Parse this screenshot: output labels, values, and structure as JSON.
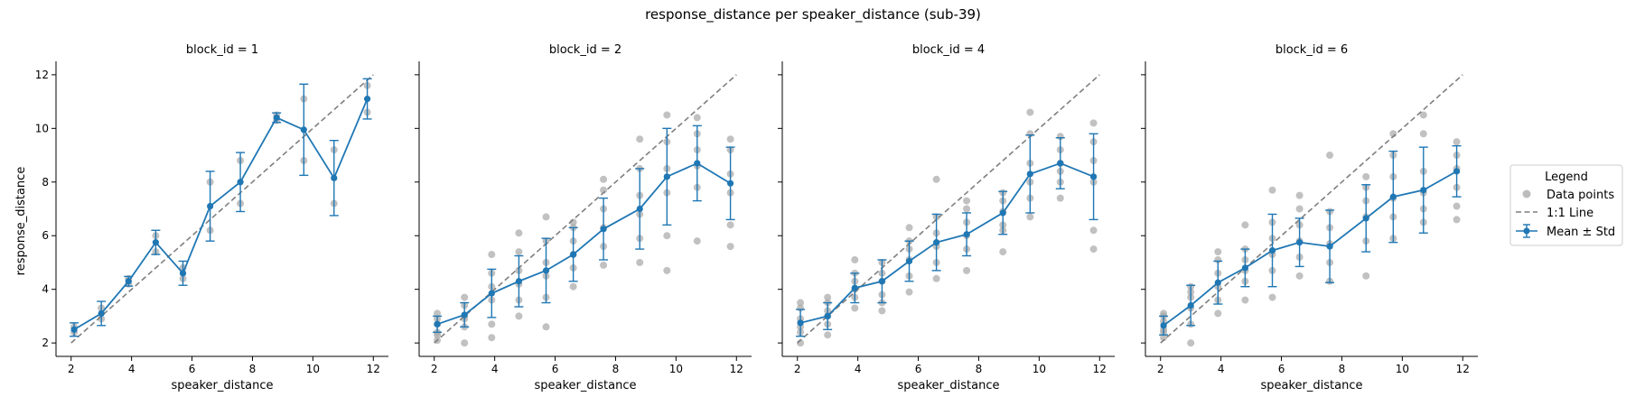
{
  "figure": {
    "title": "response_distance per speaker_distance (sub-39)"
  },
  "legend": {
    "title": "Legend",
    "entries": [
      "Data points",
      "1:1 Line",
      "Mean ± Std"
    ]
  },
  "colors": {
    "points": "#a6a6a6",
    "mean": "#1f77b4",
    "identity": "#7f7f7f"
  },
  "chart_data": {
    "type": "scatter",
    "facet_variable": "block_id",
    "xlabel": "speaker_distance",
    "ylabel": "response_distance",
    "xlim": [
      1.5,
      12.5
    ],
    "ylim": [
      1.5,
      12.5
    ],
    "xticks": [
      2,
      4,
      6,
      8,
      10,
      12
    ],
    "yticks": [
      2,
      4,
      6,
      8,
      10,
      12
    ],
    "x": [
      2.1,
      3.0,
      3.9,
      4.8,
      5.7,
      6.6,
      7.6,
      8.8,
      9.7,
      10.7,
      11.8
    ],
    "panels": [
      {
        "title": "block_id = 1",
        "mean": [
          2.5,
          3.1,
          4.3,
          5.75,
          4.6,
          7.1,
          8.0,
          10.4,
          9.95,
          8.15,
          11.1
        ],
        "std": [
          0.25,
          0.45,
          0.18,
          0.45,
          0.45,
          1.3,
          1.1,
          0.18,
          1.7,
          1.4,
          0.75
        ],
        "points": [
          [
            2.1,
            2.4
          ],
          [
            2.1,
            2.6
          ],
          [
            3.0,
            2.9
          ],
          [
            3.0,
            3.3
          ],
          [
            3.9,
            4.2
          ],
          [
            3.9,
            4.4
          ],
          [
            4.8,
            5.4
          ],
          [
            4.8,
            6.0
          ],
          [
            5.7,
            4.4
          ],
          [
            5.7,
            4.8
          ],
          [
            6.6,
            6.2
          ],
          [
            6.6,
            8.0
          ],
          [
            7.6,
            7.2
          ],
          [
            7.6,
            8.8
          ],
          [
            8.8,
            10.3
          ],
          [
            8.8,
            10.5
          ],
          [
            9.7,
            8.8
          ],
          [
            9.7,
            11.1
          ],
          [
            10.7,
            7.2
          ],
          [
            10.7,
            9.2
          ],
          [
            11.8,
            10.6
          ],
          [
            11.8,
            11.6
          ]
        ]
      },
      {
        "title": "block_id = 2",
        "mean": [
          2.7,
          3.05,
          3.85,
          4.3,
          4.7,
          5.3,
          6.25,
          7.0,
          8.2,
          8.7,
          7.95
        ],
        "std": [
          0.3,
          0.45,
          0.9,
          0.95,
          1.2,
          1.0,
          1.15,
          1.5,
          1.8,
          1.4,
          1.35
        ],
        "points": [
          [
            2.1,
            2.1
          ],
          [
            2.1,
            2.4
          ],
          [
            2.1,
            2.7
          ],
          [
            2.1,
            2.9
          ],
          [
            2.1,
            3.1
          ],
          [
            2.1,
            2.3
          ],
          [
            3.0,
            2.0
          ],
          [
            3.0,
            2.6
          ],
          [
            3.0,
            3.0
          ],
          [
            3.0,
            3.4
          ],
          [
            3.0,
            3.7
          ],
          [
            3.0,
            2.9
          ],
          [
            3.9,
            2.2
          ],
          [
            3.9,
            2.7
          ],
          [
            3.9,
            3.6
          ],
          [
            3.9,
            4.1
          ],
          [
            3.9,
            4.6
          ],
          [
            3.9,
            5.3
          ],
          [
            4.8,
            3.0
          ],
          [
            4.8,
            3.6
          ],
          [
            4.8,
            4.2
          ],
          [
            4.8,
            4.7
          ],
          [
            4.8,
            5.4
          ],
          [
            4.8,
            6.1
          ],
          [
            5.7,
            2.6
          ],
          [
            5.7,
            3.7
          ],
          [
            5.7,
            4.5
          ],
          [
            5.7,
            5.0
          ],
          [
            5.7,
            5.8
          ],
          [
            5.7,
            6.7
          ],
          [
            6.6,
            4.1
          ],
          [
            6.6,
            4.8
          ],
          [
            6.6,
            5.3
          ],
          [
            6.6,
            5.8
          ],
          [
            6.6,
            6.3
          ],
          [
            6.6,
            6.5
          ],
          [
            7.6,
            4.9
          ],
          [
            7.6,
            5.6
          ],
          [
            7.6,
            6.3
          ],
          [
            7.6,
            7.0
          ],
          [
            7.6,
            7.7
          ],
          [
            7.6,
            8.1
          ],
          [
            8.8,
            5.0
          ],
          [
            8.8,
            5.9
          ],
          [
            8.8,
            6.8
          ],
          [
            8.8,
            7.5
          ],
          [
            8.8,
            8.5
          ],
          [
            8.8,
            9.6
          ],
          [
            9.7,
            4.7
          ],
          [
            9.7,
            6.0
          ],
          [
            9.7,
            7.6
          ],
          [
            9.7,
            8.5
          ],
          [
            9.7,
            9.5
          ],
          [
            9.7,
            10.5
          ],
          [
            10.7,
            5.8
          ],
          [
            10.7,
            7.8
          ],
          [
            10.7,
            8.6
          ],
          [
            10.7,
            9.2
          ],
          [
            10.7,
            9.8
          ],
          [
            10.7,
            10.4
          ],
          [
            11.8,
            5.6
          ],
          [
            11.8,
            6.4
          ],
          [
            11.8,
            7.6
          ],
          [
            11.8,
            8.3
          ],
          [
            11.8,
            9.2
          ],
          [
            11.8,
            9.6
          ]
        ]
      },
      {
        "title": "block_id = 4",
        "mean": [
          2.75,
          3.0,
          4.05,
          4.3,
          5.05,
          5.75,
          6.05,
          6.85,
          8.3,
          8.7,
          8.2
        ],
        "std": [
          0.5,
          0.5,
          0.55,
          0.8,
          0.75,
          1.05,
          0.8,
          0.8,
          1.45,
          0.95,
          1.6
        ],
        "points": [
          [
            2.1,
            2.0
          ],
          [
            2.1,
            2.4
          ],
          [
            2.1,
            2.9
          ],
          [
            2.1,
            3.3
          ],
          [
            2.1,
            3.5
          ],
          [
            2.1,
            2.6
          ],
          [
            3.0,
            2.3
          ],
          [
            3.0,
            2.7
          ],
          [
            3.0,
            3.0
          ],
          [
            3.0,
            3.5
          ],
          [
            3.0,
            3.7
          ],
          [
            3.0,
            3.2
          ],
          [
            3.9,
            3.3
          ],
          [
            3.9,
            3.7
          ],
          [
            3.9,
            4.0
          ],
          [
            3.9,
            4.3
          ],
          [
            3.9,
            4.6
          ],
          [
            3.9,
            5.1
          ],
          [
            4.8,
            3.2
          ],
          [
            4.8,
            3.8
          ],
          [
            4.8,
            4.3
          ],
          [
            4.8,
            4.6
          ],
          [
            4.8,
            5.0
          ],
          [
            4.8,
            3.5
          ],
          [
            5.7,
            3.9
          ],
          [
            5.7,
            4.5
          ],
          [
            5.7,
            5.1
          ],
          [
            5.7,
            5.5
          ],
          [
            5.7,
            5.8
          ],
          [
            5.7,
            6.3
          ],
          [
            6.6,
            4.4
          ],
          [
            6.6,
            5.0
          ],
          [
            6.6,
            5.6
          ],
          [
            6.6,
            6.1
          ],
          [
            6.6,
            6.7
          ],
          [
            6.6,
            8.1
          ],
          [
            7.6,
            4.7
          ],
          [
            7.6,
            5.5
          ],
          [
            7.6,
            6.0
          ],
          [
            7.6,
            6.5
          ],
          [
            7.6,
            7.0
          ],
          [
            7.6,
            7.3
          ],
          [
            8.8,
            5.4
          ],
          [
            8.8,
            6.2
          ],
          [
            8.8,
            6.9
          ],
          [
            8.8,
            7.3
          ],
          [
            8.8,
            7.6
          ],
          [
            8.8,
            6.4
          ],
          [
            9.7,
            6.7
          ],
          [
            9.7,
            7.4
          ],
          [
            9.7,
            8.0
          ],
          [
            9.7,
            8.7
          ],
          [
            9.7,
            9.8
          ],
          [
            9.7,
            10.6
          ],
          [
            10.7,
            7.4
          ],
          [
            10.7,
            8.0
          ],
          [
            10.7,
            8.7
          ],
          [
            10.7,
            9.2
          ],
          [
            10.7,
            9.7
          ],
          [
            10.7,
            8.4
          ],
          [
            11.8,
            5.5
          ],
          [
            11.8,
            6.2
          ],
          [
            11.8,
            8.0
          ],
          [
            11.8,
            8.8
          ],
          [
            11.8,
            9.5
          ],
          [
            11.8,
            10.2
          ]
        ]
      },
      {
        "title": "block_id = 6",
        "mean": [
          2.65,
          3.4,
          4.25,
          4.8,
          5.45,
          5.75,
          5.6,
          6.65,
          7.45,
          7.7,
          8.4
        ],
        "std": [
          0.35,
          0.75,
          0.8,
          0.7,
          1.35,
          0.9,
          1.35,
          1.25,
          1.7,
          1.6,
          0.95
        ],
        "points": [
          [
            2.1,
            2.2
          ],
          [
            2.1,
            2.5
          ],
          [
            2.1,
            2.8
          ],
          [
            2.1,
            3.1
          ],
          [
            2.1,
            2.4
          ],
          [
            2.1,
            3.0
          ],
          [
            3.0,
            2.0
          ],
          [
            3.0,
            2.7
          ],
          [
            3.0,
            3.3
          ],
          [
            3.0,
            3.7
          ],
          [
            3.0,
            4.1
          ],
          [
            3.0,
            3.9
          ],
          [
            3.9,
            3.1
          ],
          [
            3.9,
            3.6
          ],
          [
            3.9,
            4.1
          ],
          [
            3.9,
            4.6
          ],
          [
            3.9,
            5.1
          ],
          [
            3.9,
            5.4
          ],
          [
            4.8,
            3.6
          ],
          [
            4.8,
            4.3
          ],
          [
            4.8,
            4.7
          ],
          [
            4.8,
            5.1
          ],
          [
            4.8,
            5.5
          ],
          [
            4.8,
            6.4
          ],
          [
            5.7,
            3.7
          ],
          [
            5.7,
            4.7
          ],
          [
            5.7,
            5.3
          ],
          [
            5.7,
            5.9
          ],
          [
            5.7,
            6.5
          ],
          [
            5.7,
            7.7
          ],
          [
            6.6,
            4.5
          ],
          [
            6.6,
            5.2
          ],
          [
            6.6,
            5.8
          ],
          [
            6.6,
            6.4
          ],
          [
            6.6,
            7.0
          ],
          [
            6.6,
            7.5
          ],
          [
            7.6,
            4.3
          ],
          [
            7.6,
            5.0
          ],
          [
            7.6,
            5.7
          ],
          [
            7.6,
            6.3
          ],
          [
            7.6,
            6.9
          ],
          [
            7.6,
            9.0
          ],
          [
            8.8,
            4.5
          ],
          [
            8.8,
            5.8
          ],
          [
            8.8,
            6.7
          ],
          [
            8.8,
            7.3
          ],
          [
            8.8,
            7.8
          ],
          [
            8.8,
            8.2
          ],
          [
            9.7,
            5.9
          ],
          [
            9.7,
            6.7
          ],
          [
            9.7,
            7.4
          ],
          [
            9.7,
            8.2
          ],
          [
            9.7,
            9.0
          ],
          [
            9.7,
            9.8
          ],
          [
            10.7,
            6.5
          ],
          [
            10.7,
            7.0
          ],
          [
            10.7,
            7.6
          ],
          [
            10.7,
            8.4
          ],
          [
            10.7,
            9.8
          ],
          [
            10.7,
            10.5
          ],
          [
            11.8,
            6.6
          ],
          [
            11.8,
            7.1
          ],
          [
            11.8,
            7.8
          ],
          [
            11.8,
            8.5
          ],
          [
            11.8,
            9.0
          ],
          [
            11.8,
            9.5
          ]
        ]
      }
    ]
  }
}
